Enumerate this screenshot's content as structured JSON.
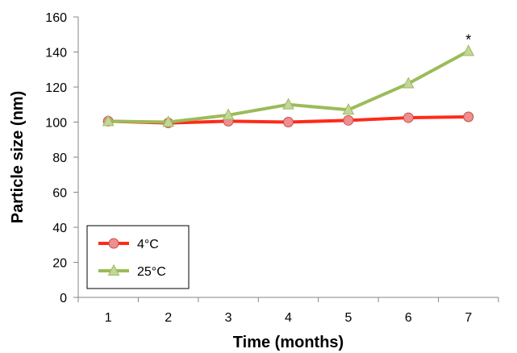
{
  "chart_data": {
    "type": "line",
    "xlabel": "Time (months)",
    "ylabel": "Particle size (nm)",
    "categories": [
      "1",
      "2",
      "3",
      "4",
      "5",
      "6",
      "7"
    ],
    "ylim": [
      0,
      160
    ],
    "yticks": [
      0,
      20,
      40,
      60,
      80,
      100,
      120,
      140,
      160
    ],
    "grid": false,
    "legend_position": "bottom-left",
    "series": [
      {
        "name": "4°C",
        "values": [
          100.5,
          99.5,
          100.5,
          100,
          101,
          102.5,
          103
        ],
        "color": "#ff2a1a",
        "marker": "circle",
        "marker_fill": "#f08d8d",
        "marker_stroke": "#c0504d"
      },
      {
        "name": "25°C",
        "values": [
          100.5,
          100,
          104,
          110,
          107,
          122,
          140.5
        ],
        "color": "#9bbb59",
        "marker": "triangle",
        "marker_fill": "#c3d69b",
        "marker_stroke": "#9bbb59"
      }
    ],
    "annotations": [
      {
        "text": "*",
        "category": "7",
        "series": "25°C"
      }
    ]
  }
}
